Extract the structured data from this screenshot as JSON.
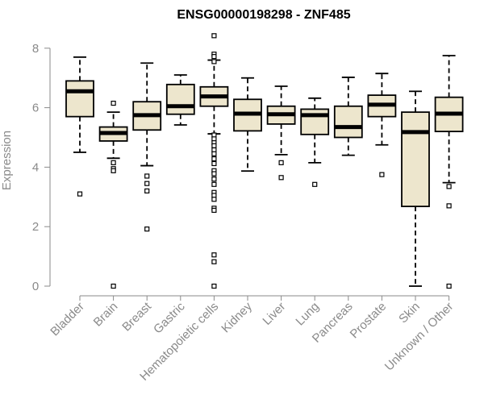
{
  "chart_data": {
    "type": "boxplot",
    "title": "ENSG00000198298 - ZNF485",
    "ylabel": "Expression",
    "ylim": [
      0,
      8.5
    ],
    "yticks": [
      0,
      2,
      4,
      6,
      8
    ],
    "box_color": "#ede6cd",
    "categories": [
      "Bladder",
      "Brain",
      "Breast",
      "Gastric",
      "Hematopoietic cells",
      "Kidney",
      "Liver",
      "Lung",
      "Pancreas",
      "Prostate",
      "Skin",
      "Unknown / Other"
    ],
    "boxes": [
      {
        "category": "Bladder",
        "whisker_low": 4.5,
        "q1": 5.7,
        "median": 6.55,
        "q3": 6.9,
        "whisker_high": 7.7,
        "outliers": [
          3.1
        ]
      },
      {
        "category": "Brain",
        "whisker_low": 4.3,
        "q1": 4.88,
        "median": 5.15,
        "q3": 5.35,
        "whisker_high": 5.85,
        "outliers": [
          6.15,
          4.15,
          3.95,
          3.88,
          0.0
        ]
      },
      {
        "category": "Breast",
        "whisker_low": 4.05,
        "q1": 5.25,
        "median": 5.75,
        "q3": 6.2,
        "whisker_high": 7.5,
        "outliers": [
          3.7,
          3.45,
          3.2,
          1.92
        ]
      },
      {
        "category": "Gastric",
        "whisker_low": 5.42,
        "q1": 5.78,
        "median": 6.05,
        "q3": 6.78,
        "whisker_high": 7.1,
        "outliers": []
      },
      {
        "category": "Hematopoietic cells",
        "whisker_low": 5.12,
        "q1": 6.05,
        "median": 6.38,
        "q3": 6.7,
        "whisker_high": 7.6,
        "outliers": [
          8.42,
          7.8,
          7.72,
          7.55,
          5.08,
          4.95,
          4.82,
          4.72,
          4.58,
          4.45,
          4.28,
          4.12,
          3.88,
          3.78,
          3.6,
          3.42,
          3.15,
          3.05,
          2.92,
          2.62,
          2.55,
          1.05,
          0.82,
          0.0
        ]
      },
      {
        "category": "Kidney",
        "whisker_low": 3.87,
        "q1": 5.22,
        "median": 5.8,
        "q3": 6.28,
        "whisker_high": 7.0,
        "outliers": []
      },
      {
        "category": "Liver",
        "whisker_low": 4.42,
        "q1": 5.45,
        "median": 5.78,
        "q3": 6.05,
        "whisker_high": 6.72,
        "outliers": [
          4.15,
          3.65
        ]
      },
      {
        "category": "Lung",
        "whisker_low": 4.15,
        "q1": 5.1,
        "median": 5.75,
        "q3": 5.95,
        "whisker_high": 6.32,
        "outliers": [
          3.42
        ]
      },
      {
        "category": "Pancreas",
        "whisker_low": 4.4,
        "q1": 5.0,
        "median": 5.35,
        "q3": 6.05,
        "whisker_high": 7.02,
        "outliers": []
      },
      {
        "category": "Prostate",
        "whisker_low": 4.75,
        "q1": 5.7,
        "median": 6.1,
        "q3": 6.42,
        "whisker_high": 7.15,
        "outliers": [
          3.75
        ]
      },
      {
        "category": "Skin",
        "whisker_low": 0.0,
        "q1": 2.68,
        "median": 5.18,
        "q3": 5.85,
        "whisker_high": 6.55,
        "outliers": []
      },
      {
        "category": "Unknown / Other",
        "whisker_low": 3.48,
        "q1": 5.2,
        "median": 5.8,
        "q3": 6.35,
        "whisker_high": 7.75,
        "outliers": [
          3.35,
          2.7,
          0.0
        ]
      }
    ]
  }
}
